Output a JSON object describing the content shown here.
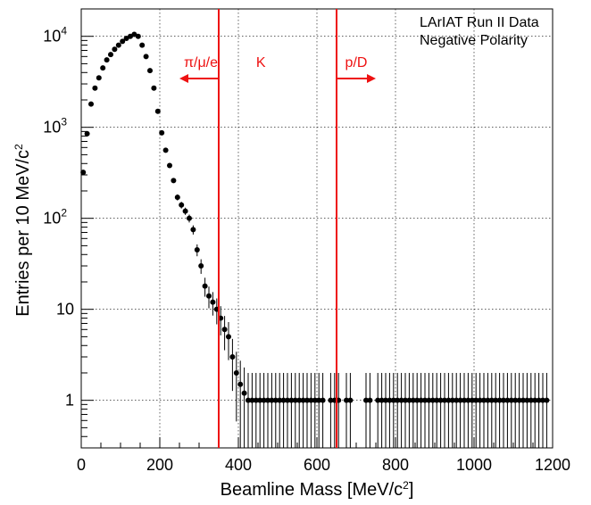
{
  "chart_data": {
    "type": "scatter",
    "title": "",
    "legend": [
      "LArIAT Run II Data",
      "Negative Polarity"
    ],
    "xlabel": "Beamline Mass [MeV/c",
    "xlabel_sup": "2",
    "xlabel_end": "]",
    "ylabel": "Entries per 10 MeV/c",
    "ylabel_sup": "2",
    "xlim": [
      0,
      1200
    ],
    "ylim": [
      0.3,
      20000
    ],
    "yscale": "log",
    "grid": true,
    "x_ticks": [
      "0",
      "200",
      "400",
      "600",
      "800",
      "1000",
      "1200"
    ],
    "y_ticks": [
      {
        "value": 1,
        "label": "1"
      },
      {
        "value": 10,
        "label": "10"
      },
      {
        "value": 100,
        "label": "10",
        "sup": "2"
      },
      {
        "value": 1000,
        "label": "10",
        "sup": "3"
      },
      {
        "value": 10000,
        "label": "10",
        "sup": "4"
      }
    ],
    "cuts": [
      {
        "x": 350,
        "label": "π/μ/e",
        "direction": "left"
      },
      {
        "x": 650,
        "label": "p/D",
        "direction": "right"
      }
    ],
    "region_label": {
      "text": "K",
      "x": 480
    },
    "colors": {
      "cut": "#ee1111",
      "points": "#000000"
    },
    "series": [
      {
        "x": [
          5,
          15,
          25,
          35,
          45,
          55,
          65,
          75,
          85,
          95,
          105,
          115,
          125,
          135,
          145,
          155,
          165,
          175,
          185,
          195,
          205,
          215,
          225,
          235,
          245,
          255,
          265,
          275,
          285,
          295,
          305,
          315,
          325,
          335,
          345,
          355,
          365,
          375,
          385,
          395,
          405,
          415,
          425,
          435,
          445,
          455,
          465,
          475,
          485,
          495,
          505,
          515,
          525,
          535,
          545,
          555,
          565,
          575,
          585,
          595,
          605,
          615,
          635,
          645,
          655,
          675,
          685,
          725,
          735,
          755,
          765,
          775,
          785,
          795,
          805,
          815,
          825,
          835,
          845,
          855,
          865,
          875,
          885,
          895,
          905,
          915,
          925,
          935,
          945,
          955,
          965,
          975,
          985,
          995,
          1005,
          1015,
          1025,
          1035,
          1045,
          1055,
          1065,
          1075,
          1085,
          1095,
          1105,
          1115,
          1125,
          1135,
          1145,
          1155,
          1165,
          1175,
          1185
        ],
        "y": [
          320,
          850,
          1800,
          2700,
          3500,
          4500,
          5500,
          6300,
          7200,
          8000,
          8800,
          9500,
          10000,
          10500,
          10000,
          8000,
          6000,
          4200,
          2700,
          1500,
          870,
          560,
          380,
          260,
          170,
          140,
          120,
          100,
          75,
          45,
          30,
          18,
          14,
          12,
          10,
          8,
          6,
          5,
          3,
          2,
          1.5,
          1.2,
          1,
          1,
          1,
          1,
          1,
          1,
          1,
          1,
          1,
          1,
          1,
          1,
          1,
          1,
          1,
          1,
          1,
          1,
          1,
          1,
          1,
          1,
          1,
          1,
          1,
          1,
          1,
          1,
          1,
          1,
          1,
          1,
          1,
          1,
          1,
          1,
          1,
          1,
          1,
          1,
          1,
          1,
          1,
          1,
          1,
          1,
          1,
          1,
          1,
          1,
          1,
          1,
          1,
          1,
          1,
          1,
          1,
          1,
          1,
          1,
          1,
          1,
          1,
          1,
          1,
          1,
          1,
          1,
          1,
          1,
          1
        ]
      }
    ]
  }
}
